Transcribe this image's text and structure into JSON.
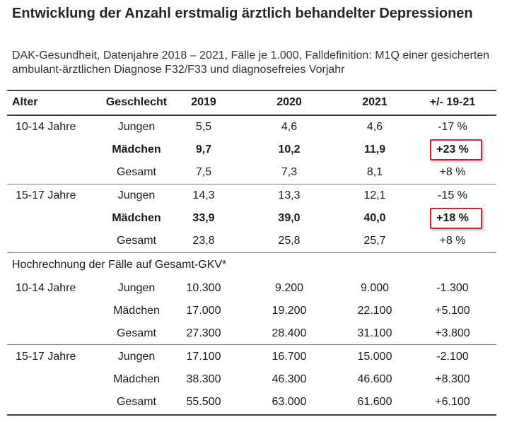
{
  "title": "Entwicklung der Anzahl erstmalig ärztlich behandelter Depressionen",
  "subtitle": "DAK-Gesundheit, Datenjahre 2018 – 2021, Fälle je 1.000, Falldefinition: M1Q einer gesicherten ambulant-ärztlichen Diagnose F32/F33 und diagnosefreies Vorjahr",
  "header": {
    "age": "Alter",
    "sex": "Geschlecht",
    "y2019": "2019",
    "y2020": "2020",
    "y2021": "2021",
    "change": "+/- 19-21"
  },
  "rate_groups": [
    {
      "age": "10-14 Jahre",
      "rows": [
        {
          "sex": "Jungen",
          "y2019": "5,5",
          "y2020": "4,6",
          "y2021": "4,6",
          "change": "-17 %",
          "bold": false,
          "highlight": false
        },
        {
          "sex": "Mädchen",
          "y2019": "9,7",
          "y2020": "10,2",
          "y2021": "11,9",
          "change": "+23 %",
          "bold": true,
          "highlight": true
        },
        {
          "sex": "Gesamt",
          "y2019": "7,5",
          "y2020": "7,3",
          "y2021": "8,1",
          "change": "+8 %",
          "bold": false,
          "highlight": false
        }
      ]
    },
    {
      "age": "15-17 Jahre",
      "rows": [
        {
          "sex": "Jungen",
          "y2019": "14,3",
          "y2020": "13,3",
          "y2021": "12,1",
          "change": "-15 %",
          "bold": false,
          "highlight": false
        },
        {
          "sex": "Mädchen",
          "y2019": "33,9",
          "y2020": "39,0",
          "y2021": "40,0",
          "change": "+18 %",
          "bold": true,
          "highlight": true
        },
        {
          "sex": "Gesamt",
          "y2019": "23,8",
          "y2020": "25,8",
          "y2021": "25,7",
          "change": "+8 %",
          "bold": false,
          "highlight": false
        }
      ]
    }
  ],
  "projection_label": "Hochrechnung der Fälle auf Gesamt-GKV*",
  "projection_groups": [
    {
      "age": "10-14 Jahre",
      "rows": [
        {
          "sex": "Jungen",
          "y2019": "10.300",
          "y2020": "9.200",
          "y2021": "9.000",
          "change": "-1.300"
        },
        {
          "sex": "Mädchen",
          "y2019": "17.000",
          "y2020": "19.200",
          "y2021": "22.100",
          "change": "+5.100"
        },
        {
          "sex": "Gesamt",
          "y2019": "27.300",
          "y2020": "28.400",
          "y2021": "31.100",
          "change": "+3.800"
        }
      ]
    },
    {
      "age": "15-17 Jahre",
      "rows": [
        {
          "sex": "Jungen",
          "y2019": "17.100",
          "y2020": "16.700",
          "y2021": "15.000",
          "change": "-2.100"
        },
        {
          "sex": "Mädchen",
          "y2019": "38.300",
          "y2020": "46.300",
          "y2021": "46.600",
          "change": "+8.300"
        },
        {
          "sex": "Gesamt",
          "y2019": "55.500",
          "y2020": "63.000",
          "y2021": "61.600",
          "change": "+6.100"
        }
      ]
    }
  ],
  "colors": {
    "highlight_border": "#d2232a",
    "rule_dark": "#404040",
    "rule_light": "#7f7f7f"
  }
}
